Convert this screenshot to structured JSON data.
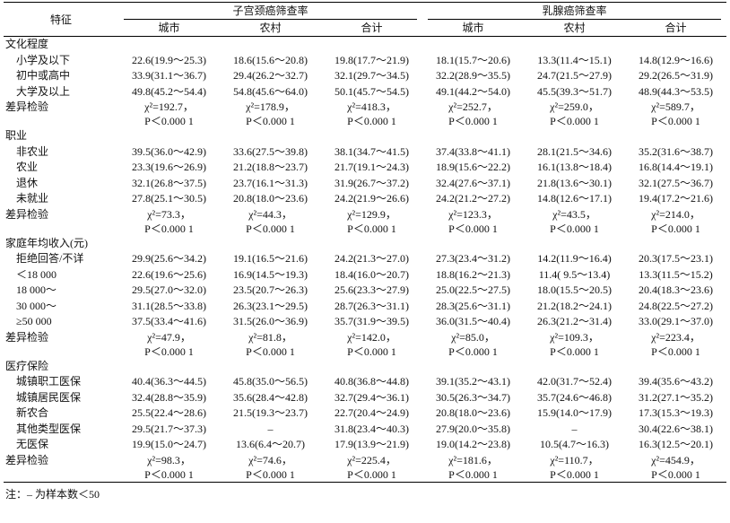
{
  "table": {
    "header": {
      "feature": "特征",
      "groups": [
        {
          "title": "子宫颈癌筛查率",
          "columns": [
            "城市",
            "农村",
            "合计"
          ]
        },
        {
          "title": "乳腺癌筛查率",
          "columns": [
            "城市",
            "农村",
            "合计"
          ]
        }
      ]
    },
    "sections": [
      {
        "title": "文化程度",
        "rows": [
          {
            "label": "小学及以下",
            "cells": [
              "22.6(19.9～25.3)",
              "18.6(15.6～20.8)",
              "19.8(17.7～21.9)",
              "18.1(15.7～20.6)",
              "13.3(11.4～15.1)",
              "14.8(12.9～16.6)"
            ]
          },
          {
            "label": "初中或高中",
            "cells": [
              "33.9(31.1～36.7)",
              "29.4(26.2～32.7)",
              "32.1(29.7～34.5)",
              "32.2(28.9～35.5)",
              "24.7(21.5～27.9)",
              "29.2(26.5～31.9)"
            ]
          },
          {
            "label": "大学及以上",
            "cells": [
              "49.8(45.2～54.4)",
              "54.8(45.6～64.0)",
              "50.1(45.7～54.5)",
              "49.1(44.2～54.0)",
              "45.5(39.3～51.7)",
              "48.9(44.3～53.5)"
            ]
          }
        ],
        "test": {
          "label": "差异检验",
          "cells": [
            {
              "chi": "χ²=192.7，",
              "p": "P＜0.000 1"
            },
            {
              "chi": "χ²=178.9，",
              "p": "P＜0.000 1"
            },
            {
              "chi": "χ²=418.3，",
              "p": "P＜0.000 1"
            },
            {
              "chi": "χ²=252.7，",
              "p": "P＜0.000 1"
            },
            {
              "chi": "χ²=259.0，",
              "p": "P＜0.000 1"
            },
            {
              "chi": "χ²=589.7，",
              "p": "P＜0.000 1"
            }
          ]
        }
      },
      {
        "title": "职业",
        "rows": [
          {
            "label": "非农业",
            "cells": [
              "39.5(36.0～42.9)",
              "33.6(27.5～39.8)",
              "38.1(34.7～41.5)",
              "37.4(33.8～41.1)",
              "28.1(21.5～34.6)",
              "35.2(31.6～38.7)"
            ]
          },
          {
            "label": "农业",
            "cells": [
              "23.3(19.6～26.9)",
              "21.2(18.8～23.7)",
              "21.7(19.1～24.3)",
              "18.9(15.6～22.2)",
              "16.1(13.8～18.4)",
              "16.8(14.4～19.1)"
            ]
          },
          {
            "label": "退休",
            "cells": [
              "32.1(26.8～37.5)",
              "23.7(16.1～31.3)",
              "31.9(26.7～37.2)",
              "32.4(27.6～37.1)",
              "21.8(13.6～30.1)",
              "32.1(27.5～36.7)"
            ]
          },
          {
            "label": "未就业",
            "cells": [
              "27.8(25.1～30.5)",
              "20.8(18.0～23.6)",
              "24.2(21.9～26.6)",
              "24.2(21.2～27.2)",
              "14.8(12.6～17.1)",
              "19.4(17.2～21.6)"
            ]
          }
        ],
        "test": {
          "label": "差异检验",
          "cells": [
            {
              "chi": "χ²=73.3，",
              "p": "P＜0.000 1"
            },
            {
              "chi": "χ²=44.3，",
              "p": "P＜0.000 1"
            },
            {
              "chi": "χ²=129.9，",
              "p": "P＜0.000 1"
            },
            {
              "chi": "χ²=123.3，",
              "p": "P＜0.000 1"
            },
            {
              "chi": "χ²=43.5，",
              "p": "P＜0.000 1"
            },
            {
              "chi": "χ²=214.0，",
              "p": "P＜0.000 1"
            }
          ]
        }
      },
      {
        "title": "家庭年均收入(元)",
        "rows": [
          {
            "label": "拒绝回答/不详",
            "cells": [
              "29.9(25.6～34.2)",
              "19.1(16.5～21.6)",
              "24.2(21.3～27.0)",
              "27.3(23.4～31.2)",
              "14.2(11.9～16.4)",
              "20.3(17.5～23.1)"
            ]
          },
          {
            "label": "＜18 000",
            "cells": [
              "22.6(19.6～25.6)",
              "16.9(14.5～19.3)",
              "18.4(16.0～20.7)",
              "18.8(16.2～21.3)",
              "11.4( 9.5～13.4)",
              "13.3(11.5～15.2)"
            ]
          },
          {
            "label": "18 000～",
            "cells": [
              "29.5(27.0～32.0)",
              "23.5(20.7～26.3)",
              "25.6(23.3～27.9)",
              "25.0(22.5～27.5)",
              "18.0(15.5～20.5)",
              "20.4(18.3～23.6)"
            ]
          },
          {
            "label": "30 000～",
            "cells": [
              "31.1(28.5～33.8)",
              "26.3(23.1～29.5)",
              "28.7(26.3～31.1)",
              "28.3(25.6～31.1)",
              "21.2(18.2～24.1)",
              "24.8(22.5～27.2)"
            ]
          },
          {
            "label": "≥50 000",
            "cells": [
              "37.5(33.4～41.6)",
              "31.5(26.0～36.9)",
              "35.7(31.9～39.5)",
              "36.0(31.5～40.4)",
              "26.3(21.2～31.4)",
              "33.0(29.1～37.0)"
            ]
          }
        ],
        "test": {
          "label": "差异检验",
          "cells": [
            {
              "chi": "χ²=47.9，",
              "p": "P＜0.000 1"
            },
            {
              "chi": "χ²=81.8，",
              "p": "P＜0.000 1"
            },
            {
              "chi": "χ²=142.0，",
              "p": "P＜0.000 1"
            },
            {
              "chi": "χ²=85.0，",
              "p": "P＜0.000 1"
            },
            {
              "chi": "χ²=109.3，",
              "p": "P＜0.000 1"
            },
            {
              "chi": "χ²=223.4，",
              "p": "P＜0.000 1"
            }
          ]
        }
      },
      {
        "title": "医疗保险",
        "rows": [
          {
            "label": "城镇职工医保",
            "cells": [
              "40.4(36.3～44.5)",
              "45.8(35.0～56.5)",
              "40.8(36.8～44.8)",
              "39.1(35.2～43.1)",
              "42.0(31.7～52.4)",
              "39.4(35.6～43.2)"
            ]
          },
          {
            "label": "城镇居民医保",
            "cells": [
              "32.4(28.8～35.9)",
              "35.6(28.4～42.8)",
              "32.7(29.4～36.1)",
              "30.5(26.3～34.7)",
              "35.7(24.6～46.8)",
              "31.2(27.1～35.2)"
            ]
          },
          {
            "label": "新农合",
            "cells": [
              "25.5(22.4～28.6)",
              "21.5(19.3～23.7)",
              "22.7(20.4～24.9)",
              "20.8(18.0～23.6)",
              "15.9(14.0～17.9)",
              "17.3(15.3～19.3)"
            ]
          },
          {
            "label": "其他类型医保",
            "cells": [
              "29.5(21.7～37.3)",
              "–",
              "31.8(23.4～40.3)",
              "27.9(20.0～35.8)",
              "–",
              "30.4(22.6～38.1)"
            ]
          },
          {
            "label": "无医保",
            "cells": [
              "19.9(15.0～24.7)",
              "13.6(6.4～20.7)",
              "17.9(13.9～21.9)",
              "19.0(14.2～23.8)",
              "10.5(4.7～16.3)",
              "16.3(12.5～20.1)"
            ]
          }
        ],
        "test": {
          "label": "差异检验",
          "cells": [
            {
              "chi": "χ²=98.3，",
              "p": "P＜0.000 1"
            },
            {
              "chi": "χ²=74.6，",
              "p": "P＜0.000 1"
            },
            {
              "chi": "χ²=225.4，",
              "p": "P＜0.000 1"
            },
            {
              "chi": "χ²=181.6，",
              "p": "P＜0.000 1"
            },
            {
              "chi": "χ²=110.7，",
              "p": "P＜0.000 1"
            },
            {
              "chi": "χ²=454.9，",
              "p": "P＜0.000 1"
            }
          ]
        }
      }
    ]
  },
  "note": "注：– 为样本数＜50"
}
